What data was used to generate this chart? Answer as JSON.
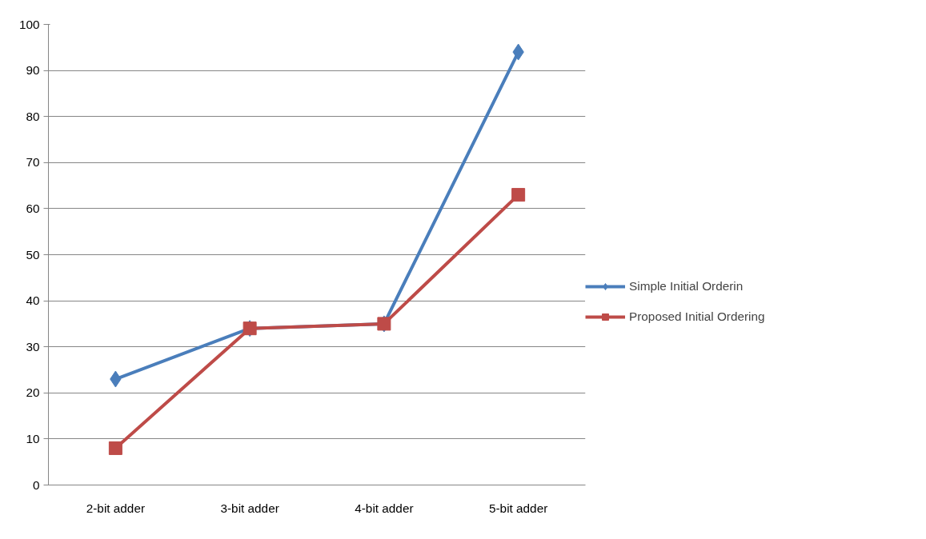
{
  "chart_data": {
    "type": "line",
    "categories": [
      "2-bit adder",
      "3-bit adder",
      "4-bit adder",
      "5-bit adder"
    ],
    "series": [
      {
        "name": "Simple Initial Orderin",
        "color": "#4a7ebb",
        "marker": "diamond",
        "values": [
          23,
          34,
          35,
          94
        ]
      },
      {
        "name": "Proposed Initial Ordering",
        "color": "#be4b48",
        "marker": "square",
        "values": [
          8,
          34,
          35,
          63
        ]
      }
    ],
    "ylim": [
      0,
      100
    ],
    "yticks": [
      0,
      10,
      20,
      30,
      40,
      50,
      60,
      70,
      80,
      90,
      100
    ],
    "grid": "y",
    "legend": "right",
    "line_style": "solid"
  }
}
